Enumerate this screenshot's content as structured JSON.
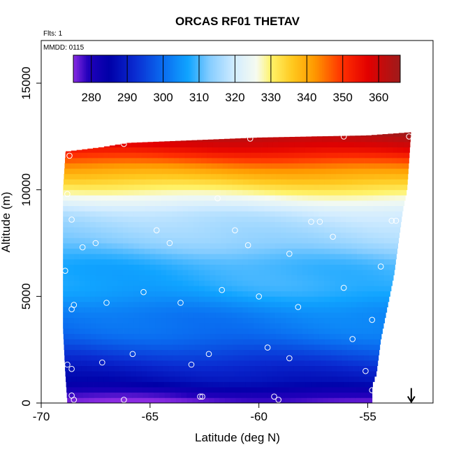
{
  "chart_data": {
    "type": "heatmap",
    "title": "ORCAS RF01 THETAV",
    "annotations": {
      "flights": "Flts: 1",
      "date": "MMDD: 0115"
    },
    "xlabel": "Latitude (deg N)",
    "ylabel": "Altitude (m)",
    "xlim": [
      -70,
      -52
    ],
    "ylim": [
      0,
      17000
    ],
    "x_ticks": [
      -70,
      -65,
      -60,
      -55
    ],
    "x_tick_labels": [
      "-70",
      "-65",
      "-60",
      "-55"
    ],
    "y_ticks": [
      0,
      5000,
      10000,
      15000
    ],
    "y_tick_labels": [
      "0",
      "5000",
      "10000",
      "15000"
    ],
    "colorbar": {
      "min": 275,
      "max": 366,
      "ticks": [
        280,
        290,
        300,
        310,
        320,
        330,
        340,
        350,
        360
      ],
      "tick_labels": [
        "280",
        "290",
        "300",
        "310",
        "320",
        "330",
        "340",
        "350",
        "360"
      ],
      "stops": [
        {
          "v": 275,
          "c": "#8a2be2"
        },
        {
          "v": 279,
          "c": "#2200bb"
        },
        {
          "v": 285,
          "c": "#0000a8"
        },
        {
          "v": 292,
          "c": "#0a2ad0"
        },
        {
          "v": 300,
          "c": "#0a6cf0"
        },
        {
          "v": 307,
          "c": "#10a4ff"
        },
        {
          "v": 313,
          "c": "#86cdff"
        },
        {
          "v": 320,
          "c": "#d2ecff"
        },
        {
          "v": 326,
          "c": "#f6fbf0"
        },
        {
          "v": 330,
          "c": "#fff36a"
        },
        {
          "v": 336,
          "c": "#ffc81e"
        },
        {
          "v": 342,
          "c": "#ff9a00"
        },
        {
          "v": 350,
          "c": "#ff2e00"
        },
        {
          "v": 357,
          "c": "#e20000"
        },
        {
          "v": 366,
          "c": "#9e1b1b"
        }
      ]
    },
    "grid": false,
    "legend": "colorbar top",
    "field": {
      "lat_range": [
        -68.8,
        -53.0
      ],
      "lat_step": 0.25,
      "alt_step": 250,
      "profile": [
        {
          "alt": 0,
          "theta": 276
        },
        {
          "alt": 400,
          "theta": 279
        },
        {
          "alt": 1000,
          "theta": 287
        },
        {
          "alt": 2000,
          "theta": 294
        },
        {
          "alt": 3500,
          "theta": 301
        },
        {
          "alt": 5000,
          "theta": 306
        },
        {
          "alt": 6500,
          "theta": 310
        },
        {
          "alt": 8000,
          "theta": 315
        },
        {
          "alt": 9000,
          "theta": 320
        },
        {
          "alt": 9700,
          "theta": 326
        },
        {
          "alt": 10200,
          "theta": 332
        },
        {
          "alt": 10800,
          "theta": 340
        },
        {
          "alt": 11500,
          "theta": 350
        },
        {
          "alt": 12000,
          "theta": 356
        },
        {
          "alt": 12800,
          "theta": 364
        }
      ],
      "top_edge": [
        {
          "lat": -68.8,
          "alt": 11800
        },
        {
          "lat": -67.2,
          "alt": 12000
        },
        {
          "lat": -66.0,
          "alt": 12200
        },
        {
          "lat": -60.0,
          "alt": 12450
        },
        {
          "lat": -55.0,
          "alt": 12550
        },
        {
          "lat": -53.0,
          "alt": 12700
        }
      ],
      "bottom_edge": [
        {
          "lat": -68.8,
          "alt": 100
        },
        {
          "lat": -55.0,
          "alt": 100
        },
        {
          "lat": -53.0,
          "alt": 100
        }
      ],
      "right_edge": [
        {
          "alt": 0,
          "lat": -54.8
        },
        {
          "alt": 800,
          "lat": -54.8
        },
        {
          "alt": 1400,
          "lat": -54.6
        },
        {
          "alt": 3000,
          "lat": -54.4
        },
        {
          "alt": 4000,
          "lat": -54.2
        },
        {
          "alt": 5000,
          "lat": -54.0
        },
        {
          "alt": 6000,
          "lat": -53.8
        },
        {
          "alt": 7500,
          "lat": -53.6
        },
        {
          "alt": 9000,
          "lat": -53.4
        },
        {
          "alt": 10000,
          "lat": -53.2
        },
        {
          "alt": 13000,
          "lat": -53.0
        }
      ],
      "left_edge": [
        {
          "alt": 0,
          "lat": -68.8
        },
        {
          "alt": 1500,
          "lat": -68.9
        },
        {
          "alt": 3500,
          "lat": -69.0
        },
        {
          "alt": 8000,
          "lat": -69.0
        },
        {
          "alt": 10000,
          "lat": -69.0
        },
        {
          "alt": 13000,
          "lat": -68.8
        }
      ]
    },
    "observations": [
      {
        "lat": -68.7,
        "alt": 11600
      },
      {
        "lat": -66.2,
        "alt": 12150
      },
      {
        "lat": -60.4,
        "alt": 12400
      },
      {
        "lat": -56.1,
        "alt": 12500
      },
      {
        "lat": -53.1,
        "alt": 12500
      },
      {
        "lat": -68.8,
        "alt": 9800
      },
      {
        "lat": -61.9,
        "alt": 9600
      },
      {
        "lat": -68.6,
        "alt": 8600
      },
      {
        "lat": -64.7,
        "alt": 8100
      },
      {
        "lat": -61.1,
        "alt": 8100
      },
      {
        "lat": -57.6,
        "alt": 8500
      },
      {
        "lat": -57.2,
        "alt": 8500
      },
      {
        "lat": -56.6,
        "alt": 7800
      },
      {
        "lat": -53.9,
        "alt": 8550
      },
      {
        "lat": -53.7,
        "alt": 8550
      },
      {
        "lat": -68.1,
        "alt": 7300
      },
      {
        "lat": -67.5,
        "alt": 7500
      },
      {
        "lat": -64.1,
        "alt": 7500
      },
      {
        "lat": -60.5,
        "alt": 7400
      },
      {
        "lat": -58.6,
        "alt": 7000
      },
      {
        "lat": -68.9,
        "alt": 6200
      },
      {
        "lat": -54.4,
        "alt": 6400
      },
      {
        "lat": -65.3,
        "alt": 5200
      },
      {
        "lat": -61.7,
        "alt": 5300
      },
      {
        "lat": -60.0,
        "alt": 5000
      },
      {
        "lat": -56.1,
        "alt": 5400
      },
      {
        "lat": -68.5,
        "alt": 4600
      },
      {
        "lat": -68.6,
        "alt": 4400
      },
      {
        "lat": -67.0,
        "alt": 4700
      },
      {
        "lat": -63.6,
        "alt": 4700
      },
      {
        "lat": -58.2,
        "alt": 4500
      },
      {
        "lat": -54.8,
        "alt": 3900
      },
      {
        "lat": -55.7,
        "alt": 3000
      },
      {
        "lat": -59.6,
        "alt": 2600
      },
      {
        "lat": -65.8,
        "alt": 2300
      },
      {
        "lat": -62.3,
        "alt": 2300
      },
      {
        "lat": -58.6,
        "alt": 2100
      },
      {
        "lat": -67.2,
        "alt": 1900
      },
      {
        "lat": -63.1,
        "alt": 1800
      },
      {
        "lat": -68.8,
        "alt": 1800
      },
      {
        "lat": -68.6,
        "alt": 1600
      },
      {
        "lat": -55.1,
        "alt": 1500
      },
      {
        "lat": -54.8,
        "alt": 600
      },
      {
        "lat": -68.6,
        "alt": 350
      },
      {
        "lat": -62.7,
        "alt": 300
      },
      {
        "lat": -62.6,
        "alt": 300
      },
      {
        "lat": -59.3,
        "alt": 300
      },
      {
        "lat": -68.5,
        "alt": 150
      },
      {
        "lat": -66.2,
        "alt": 150
      },
      {
        "lat": -59.1,
        "alt": 150
      },
      {
        "lat": -54.6,
        "alt": 150
      }
    ],
    "marker": {
      "type": "arrow-down",
      "lat": -53.0,
      "alt_from": 700,
      "alt_to": 50,
      "color": "#000000"
    }
  }
}
